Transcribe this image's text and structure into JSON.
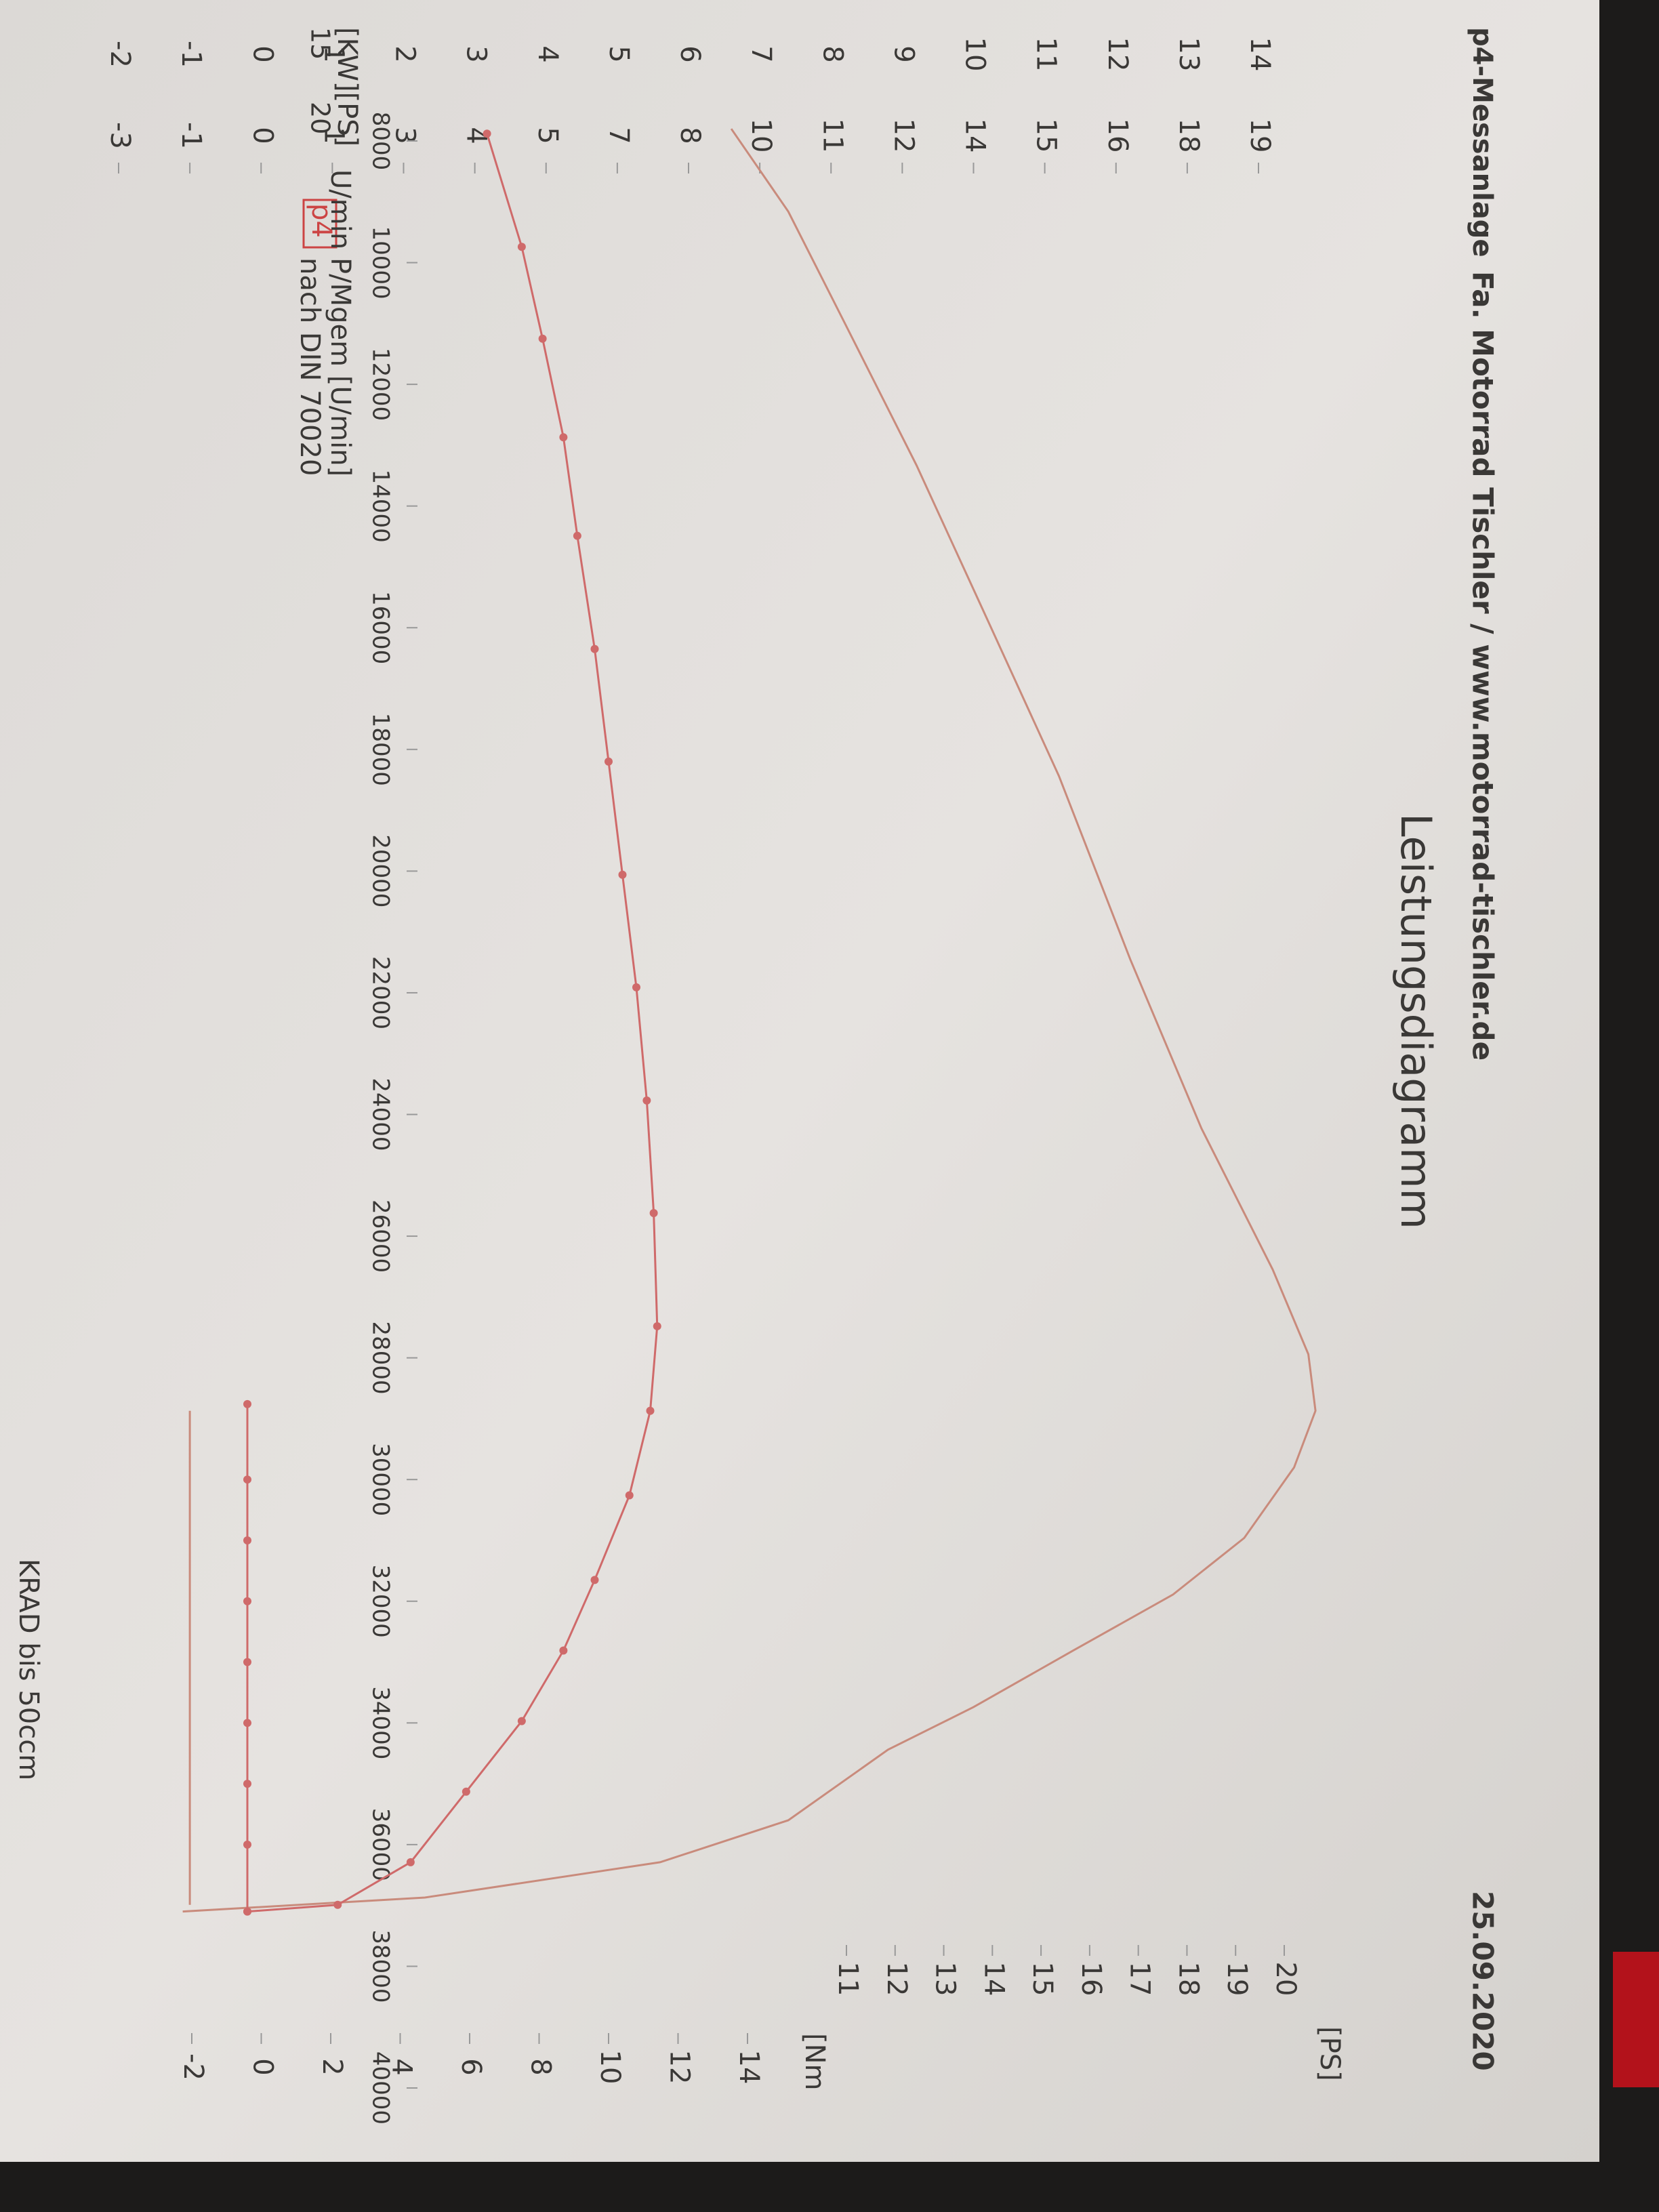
{
  "header": {
    "left": "p4-Messanlage",
    "center": "Fa. Motorrad Tischler / www.motorrad-tischler.de",
    "date": "25.09.2020"
  },
  "footer": "KRAD bis 50ccm",
  "chart_data": {
    "type": "line",
    "title": "Leistungsdiagramm",
    "badge": "p4",
    "legend_text": [
      "P/Mgem [U/min]",
      "nach DIN 70020"
    ],
    "x_label": "U/min",
    "y_label": "[KW][PS]",
    "axis_top": [
      15,
      20
    ],
    "y2_label": "[Nm",
    "y3_label": "[PS]",
    "xlim": [
      8000,
      40000
    ],
    "xticks": [
      8000,
      10000,
      12000,
      14000,
      16000,
      18000,
      20000,
      22000,
      24000,
      26000,
      28000,
      30000,
      32000,
      34000,
      36000,
      38000,
      40000
    ],
    "ylim": [
      -2,
      14
    ],
    "yticks": [
      -2,
      -1,
      0,
      1,
      2,
      3,
      4,
      5,
      6,
      7,
      8,
      9,
      10,
      11,
      12,
      13,
      14
    ],
    "ps_ticks": [
      -3,
      -1,
      0,
      1,
      3,
      4,
      5,
      7,
      8,
      10,
      11,
      12,
      14,
      15,
      16,
      18,
      19
    ],
    "y2lim": [
      -2,
      14
    ],
    "y2ticks": [
      -2,
      0,
      2,
      4,
      6,
      8,
      10,
      12,
      14
    ],
    "y3lim": [
      11,
      20
    ],
    "y3ticks": [
      11,
      12,
      13,
      14,
      15,
      16,
      17,
      18,
      19,
      20
    ],
    "series": [
      {
        "color": "#c98b7c",
        "axis": "y",
        "markers": false,
        "x": [
          7800,
          9160,
          11010,
          13330,
          15880,
          18440,
          21450,
          24230,
          26550,
          27940,
          28870,
          29800,
          30960,
          31890,
          32810,
          33740,
          34440,
          35600,
          36290,
          36870,
          37100
        ],
        "values": [
          6.6,
          7.4,
          8.2,
          9.2,
          10.2,
          11.2,
          12.2,
          13.2,
          14.2,
          14.7,
          14.8,
          14.5,
          13.8,
          12.8,
          11.4,
          10.0,
          8.8,
          7.4,
          5.6,
          2.3,
          -1.1
        ]
      },
      {
        "color": "#cf6a6a",
        "axis": "y2",
        "markers": true,
        "x": [
          7880,
          9740,
          11250,
          12870,
          14490,
          16350,
          18200,
          20060,
          21910,
          23770,
          25620,
          27480,
          28870,
          30260,
          31650,
          32810,
          33970,
          35130,
          36290,
          36990,
          37100
        ],
        "values": [
          6.5,
          7.5,
          8.1,
          8.7,
          9.1,
          9.6,
          10.0,
          10.4,
          10.8,
          11.1,
          11.3,
          11.4,
          11.2,
          10.6,
          9.6,
          8.7,
          7.5,
          5.9,
          4.3,
          2.2,
          -0.4
        ]
      },
      {
        "color": "#c98b7c",
        "axis": "y",
        "markers": false,
        "x": [
          28870,
          30000,
          32000,
          34000,
          36000,
          36990
        ],
        "values": [
          -1.0,
          -1.0,
          -1.0,
          -1.0,
          -1.0,
          -1.0
        ]
      },
      {
        "color": "#cf6a6a",
        "axis": "y2",
        "markers": true,
        "x": [
          28760,
          30000,
          31000,
          32000,
          33000,
          34000,
          35000,
          36000,
          37100
        ],
        "values": [
          -0.4,
          -0.4,
          -0.4,
          -0.4,
          -0.4,
          -0.4,
          -0.4,
          -0.4,
          -0.4
        ]
      }
    ]
  }
}
